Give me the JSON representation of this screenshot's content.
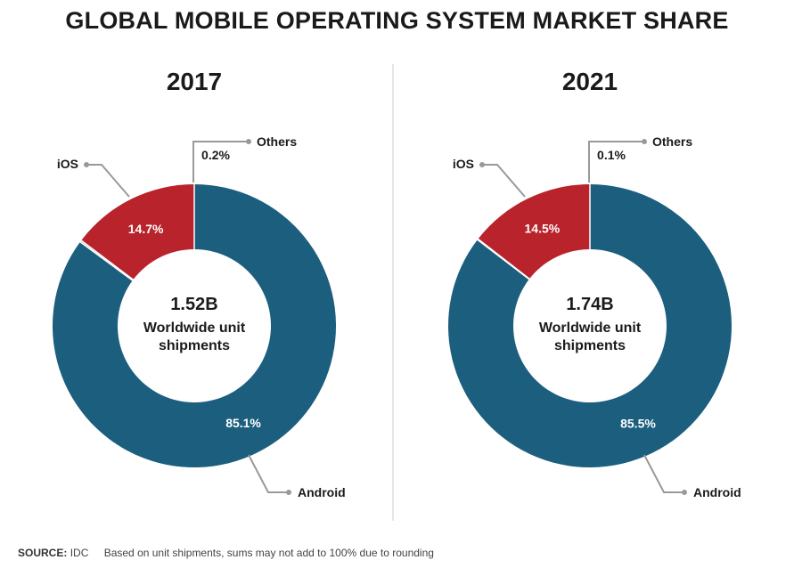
{
  "title": "GLOBAL MOBILE OPERATING SYSTEM MARKET SHARE",
  "colors": {
    "android": "#1c5e7e",
    "ios": "#b8232c",
    "others": "#9e9e9e",
    "leader": "#999999",
    "divider": "#cccccc"
  },
  "chart_data": [
    {
      "type": "pie",
      "title": "2017",
      "center_value": "1.52B",
      "center_label_line1": "Worldwide unit",
      "center_label_line2": "shipments",
      "slices": [
        {
          "name": "Android",
          "value": 85.1,
          "label": "85.1%"
        },
        {
          "name": "iOS",
          "value": 14.7,
          "label": "14.7%"
        },
        {
          "name": "Others",
          "value": 0.2,
          "label": "0.2%"
        }
      ]
    },
    {
      "type": "pie",
      "title": "2021",
      "center_value": "1.74B",
      "center_label_line1": "Worldwide unit",
      "center_label_line2": "shipments",
      "slices": [
        {
          "name": "Android",
          "value": 85.5,
          "label": "85.5%"
        },
        {
          "name": "iOS",
          "value": 14.5,
          "label": "14.5%"
        },
        {
          "name": "Others",
          "value": 0.1,
          "label": "0.1%"
        }
      ]
    }
  ],
  "footer": {
    "source_label": "SOURCE:",
    "source": "IDC",
    "note": "Based on unit shipments, sums may not add to 100% due to rounding"
  }
}
